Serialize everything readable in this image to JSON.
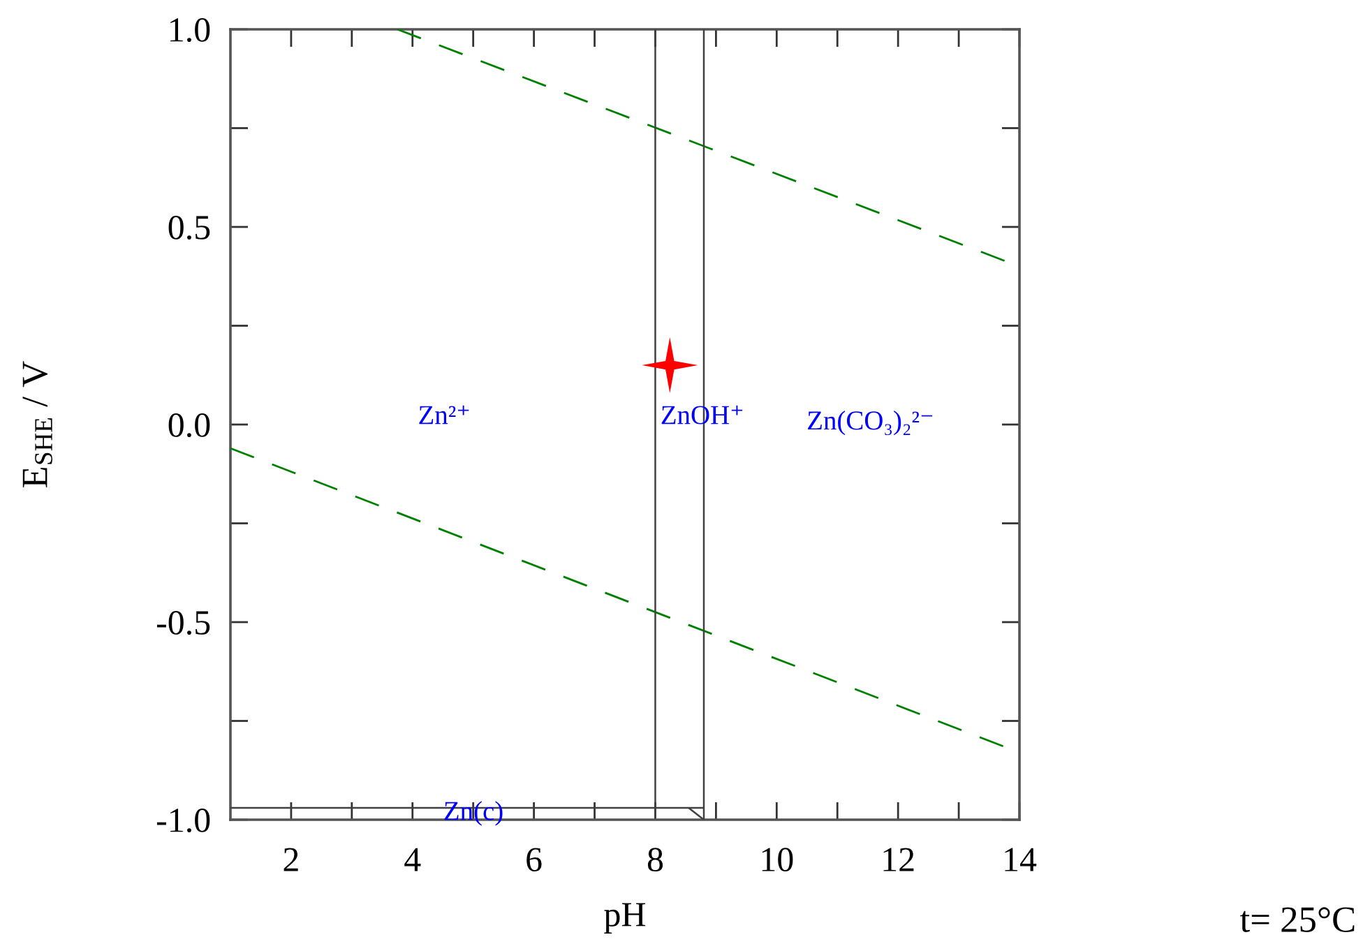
{
  "chart_data": {
    "type": "line",
    "xlabel": "pH",
    "ylabel": "E$_{SHE}$ / V",
    "xlim": [
      1,
      14
    ],
    "ylim": [
      -1,
      1
    ],
    "xticks": [
      {
        "value": 2,
        "label": "2"
      },
      {
        "value": 3,
        "label": null
      },
      {
        "value": 4,
        "label": "4"
      },
      {
        "value": 5,
        "label": null
      },
      {
        "value": 6,
        "label": "6"
      },
      {
        "value": 7,
        "label": null
      },
      {
        "value": 8,
        "label": "8"
      },
      {
        "value": 9,
        "label": null
      },
      {
        "value": 10,
        "label": "10"
      },
      {
        "value": 11,
        "label": null
      },
      {
        "value": 12,
        "label": "12"
      },
      {
        "value": 13,
        "label": null
      },
      {
        "value": 14,
        "label": "14"
      }
    ],
    "yticks": [
      {
        "value": -1,
        "label": "-1.0"
      },
      {
        "value": -0.75,
        "label": null
      },
      {
        "value": -0.5,
        "label": "-0.5"
      },
      {
        "value": -0.25,
        "label": null
      },
      {
        "value": 0,
        "label": "0.0"
      },
      {
        "value": 0.25,
        "label": null
      },
      {
        "value": 0.5,
        "label": "0.5"
      },
      {
        "value": 0.75,
        "label": null
      },
      {
        "value": 1,
        "label": "1.0"
      }
    ],
    "series": [
      {
        "color": "#008000",
        "line_style": "dashed",
        "x": [
          3.75,
          14
        ],
        "values": [
          1.0,
          0.4
        ]
      },
      {
        "color": "#008000",
        "line_style": "dashed",
        "x": [
          1,
          14
        ],
        "values": [
          -0.06,
          -0.83
        ]
      },
      {
        "color": "#404040",
        "line_style": "solid",
        "x": [
          8.0,
          8.0
        ],
        "values": [
          -0.97,
          1.0
        ]
      },
      {
        "color": "#404040",
        "line_style": "solid",
        "x": [
          8.8,
          8.8
        ],
        "values": [
          -1.0,
          1.0
        ]
      },
      {
        "color": "#404040",
        "line_style": "solid",
        "x": [
          1,
          8.8
        ],
        "values": [
          -0.97,
          -0.97
        ]
      },
      {
        "color": "#404040",
        "line_style": "solid",
        "x": [
          8.55,
          8.8
        ],
        "values": [
          -0.97,
          -1.0
        ]
      },
      {
        "type": "scatter",
        "color": "#ff0000",
        "marker": "star",
        "x": [
          8.24
        ],
        "values": [
          0.15
        ]
      }
    ],
    "annotations": [
      "Zn²⁺",
      "ZnOH⁺",
      "Zn(CO₃)₂²⁻",
      "Zn(c)",
      "t= 25°C"
    ]
  }
}
